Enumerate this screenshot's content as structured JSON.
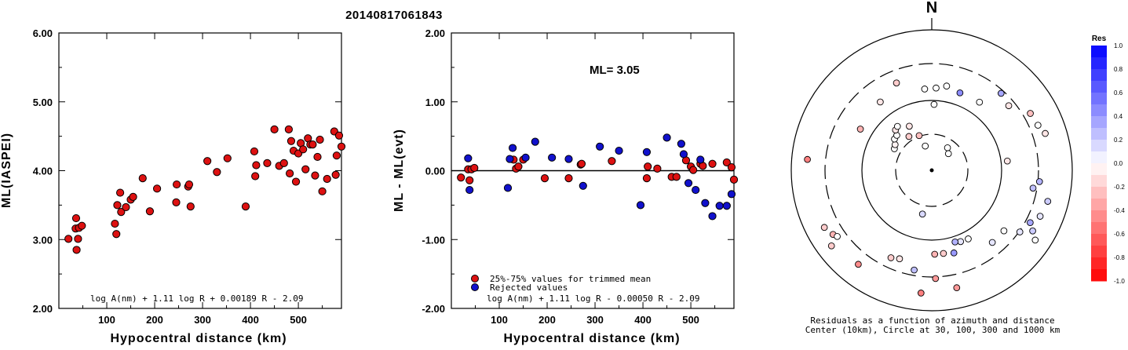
{
  "title": "20140817061843",
  "chart_data": [
    {
      "type": "scatter",
      "name": "left",
      "xlabel": "Hypocentral distance (km)",
      "ylabel": "ML(IASPEI)",
      "xlim": [
        0,
        590
      ],
      "ylim": [
        2.0,
        6.0
      ],
      "xticks": [
        "100",
        "200",
        "300",
        "400",
        "500"
      ],
      "yticks": [
        "2.00",
        "3.00",
        "4.00",
        "5.00",
        "6.00"
      ],
      "formula": "log A(nm) + 1.11 log R + 0.00189 R - 2.09",
      "series": [
        {
          "color": "#dd1111",
          "points": [
            [
              20,
              3.01
            ],
            [
              35,
              3.16
            ],
            [
              36,
              3.31
            ],
            [
              37,
              2.85
            ],
            [
              40,
              3.01
            ],
            [
              42,
              3.17
            ],
            [
              48,
              3.2
            ],
            [
              117,
              3.23
            ],
            [
              120,
              3.08
            ],
            [
              122,
              3.5
            ],
            [
              128,
              3.68
            ],
            [
              130,
              3.4
            ],
            [
              140,
              3.47
            ],
            [
              150,
              3.58
            ],
            [
              155,
              3.62
            ],
            [
              175,
              3.89
            ],
            [
              190,
              3.41
            ],
            [
              205,
              3.74
            ],
            [
              245,
              3.54
            ],
            [
              246,
              3.8
            ],
            [
              270,
              3.77
            ],
            [
              272,
              3.8
            ],
            [
              275,
              3.48
            ],
            [
              310,
              4.14
            ],
            [
              330,
              3.98
            ],
            [
              352,
              4.18
            ],
            [
              390,
              3.48
            ],
            [
              408,
              4.28
            ],
            [
              410,
              3.92
            ],
            [
              412,
              4.08
            ],
            [
              435,
              4.11
            ],
            [
              450,
              4.6
            ],
            [
              460,
              4.07
            ],
            [
              470,
              4.11
            ],
            [
              480,
              4.6
            ],
            [
              482,
              3.96
            ],
            [
              485,
              4.43
            ],
            [
              490,
              4.29
            ],
            [
              495,
              3.84
            ],
            [
              500,
              4.25
            ],
            [
              505,
              4.4
            ],
            [
              510,
              4.31
            ],
            [
              515,
              4.02
            ],
            [
              520,
              4.47
            ],
            [
              525,
              4.38
            ],
            [
              530,
              4.38
            ],
            [
              535,
              3.93
            ],
            [
              540,
              4.2
            ],
            [
              545,
              4.45
            ],
            [
              550,
              3.7
            ],
            [
              560,
              3.88
            ],
            [
              575,
              4.57
            ],
            [
              578,
              3.94
            ],
            [
              580,
              4.22
            ],
            [
              585,
              4.51
            ],
            [
              590,
              4.35
            ]
          ]
        }
      ]
    },
    {
      "type": "scatter",
      "name": "middle",
      "xlabel": "Hypocentral distance (km)",
      "ylabel": "ML - ML(evt)",
      "xlim": [
        0,
        590
      ],
      "ylim": [
        -2.0,
        2.0
      ],
      "xticks": [
        "100",
        "200",
        "300",
        "400",
        "500"
      ],
      "yticks": [
        "-2.00",
        "-1.00",
        "0.00",
        "1.00",
        "2.00"
      ],
      "ml_label": "ML= 3.05",
      "legend": [
        "25%-75% values for trimmed mean",
        "Rejected values"
      ],
      "formula": "log A(nm) + 1.11 log R - 0.00050 R - 2.09",
      "series": [
        {
          "color": "#dd1111",
          "points": [
            [
              20,
              -0.1
            ],
            [
              35,
              0.02
            ],
            [
              38,
              -0.14
            ],
            [
              42,
              0.02
            ],
            [
              48,
              0.04
            ],
            [
              130,
              0.16
            ],
            [
              135,
              0.03
            ],
            [
              140,
              0.06
            ],
            [
              150,
              0.16
            ],
            [
              195,
              -0.11
            ],
            [
              245,
              -0.11
            ],
            [
              270,
              0.09
            ],
            [
              272,
              0.1
            ],
            [
              335,
              0.14
            ],
            [
              408,
              -0.11
            ],
            [
              410,
              0.06
            ],
            [
              430,
              0.03
            ],
            [
              460,
              -0.09
            ],
            [
              470,
              -0.09
            ],
            [
              490,
              0.15
            ],
            [
              500,
              0.06
            ],
            [
              505,
              0.01
            ],
            [
              520,
              0.1
            ],
            [
              525,
              0.07
            ],
            [
              545,
              0.1
            ],
            [
              575,
              0.12
            ],
            [
              585,
              0.05
            ],
            [
              590,
              -0.13
            ]
          ]
        },
        {
          "color": "#1111cc",
          "points": [
            [
              35,
              0.18
            ],
            [
              38,
              -0.28
            ],
            [
              118,
              -0.25
            ],
            [
              122,
              0.17
            ],
            [
              128,
              0.33
            ],
            [
              155,
              0.19
            ],
            [
              175,
              0.42
            ],
            [
              210,
              0.19
            ],
            [
              245,
              0.17
            ],
            [
              275,
              -0.22
            ],
            [
              310,
              0.35
            ],
            [
              350,
              0.29
            ],
            [
              395,
              -0.5
            ],
            [
              408,
              0.27
            ],
            [
              450,
              0.48
            ],
            [
              480,
              0.39
            ],
            [
              485,
              0.24
            ],
            [
              495,
              -0.18
            ],
            [
              510,
              -0.28
            ],
            [
              520,
              0.16
            ],
            [
              530,
              -0.47
            ],
            [
              545,
              -0.66
            ],
            [
              560,
              -0.51
            ],
            [
              575,
              -0.51
            ],
            [
              585,
              -0.34
            ]
          ]
        }
      ]
    },
    {
      "type": "scatter",
      "name": "polar",
      "north_label": "N",
      "caption_line1": "Residuals as a function of azimuth and distance",
      "caption_line2": "Center (10km), Circle at 30, 100, 300 and 1000 km",
      "colorbar_title": "Res",
      "colorbar_ticks": [
        "1.0",
        "0.8",
        "0.6",
        "0.4",
        "0.2",
        "0.0",
        "-0.2",
        "-0.4",
        "-0.6",
        "-0.8",
        "-1.0"
      ],
      "stations": [
        {
          "az": 355,
          "r": 104,
          "res": 0.0
        },
        {
          "az": 3,
          "r": 105,
          "res": 0.0
        },
        {
          "az": 10,
          "r": 109,
          "res": 0.0
        },
        {
          "az": 20,
          "r": 105,
          "res": 0.45
        },
        {
          "az": 2,
          "r": 84,
          "res": 0.0
        },
        {
          "az": 338,
          "r": 120,
          "res": -0.2
        },
        {
          "az": 323,
          "r": 109,
          "res": -0.1
        },
        {
          "az": 300,
          "r": 105,
          "res": -0.3
        },
        {
          "az": 275,
          "r": 159,
          "res": -0.5
        },
        {
          "az": 35,
          "r": 106,
          "res": 0.0
        },
        {
          "az": 42,
          "r": 132,
          "res": 0.35
        },
        {
          "az": 50,
          "r": 128,
          "res": -0.1
        },
        {
          "az": 60,
          "r": 145,
          "res": -0.25
        },
        {
          "az": 67,
          "r": 147,
          "res": 0.0
        },
        {
          "az": 72,
          "r": 152,
          "res": -0.1
        },
        {
          "az": 300,
          "r": 55,
          "res": 0.0
        },
        {
          "az": 305,
          "r": 57,
          "res": -0.05
        },
        {
          "az": 310,
          "r": 62,
          "res": 0.0
        },
        {
          "az": 315,
          "r": 63,
          "res": 0.0
        },
        {
          "az": 318,
          "r": 69,
          "res": -0.1
        },
        {
          "az": 322,
          "r": 71,
          "res": 0.0
        },
        {
          "az": 333,
          "r": 63,
          "res": -0.1
        },
        {
          "az": 326,
          "r": 52,
          "res": -0.2
        },
        {
          "az": 340,
          "r": 47,
          "res": -0.25
        },
        {
          "az": 345,
          "r": 32,
          "res": 0.0
        },
        {
          "az": 35,
          "r": 35,
          "res": 0.0
        },
        {
          "az": 45,
          "r": 30,
          "res": 0.0
        },
        {
          "az": 83,
          "r": 97,
          "res": -0.1
        },
        {
          "az": 96,
          "r": 138,
          "res": 0.3
        },
        {
          "az": 100,
          "r": 131,
          "res": 0.25
        },
        {
          "az": 105,
          "r": 153,
          "res": 0.2
        },
        {
          "az": 113,
          "r": 150,
          "res": 0.1
        },
        {
          "az": 118,
          "r": 142,
          "res": 0.35
        },
        {
          "az": 121,
          "r": 150,
          "res": 0.2
        },
        {
          "az": 125,
          "r": 137,
          "res": 0.1
        },
        {
          "az": 124,
          "r": 159,
          "res": 0.0
        },
        {
          "az": 130,
          "r": 120,
          "res": 0.0
        },
        {
          "az": 140,
          "r": 120,
          "res": 0.1
        },
        {
          "az": 152,
          "r": 99,
          "res": 0.0
        },
        {
          "az": 158,
          "r": 98,
          "res": 0.1
        },
        {
          "az": 162,
          "r": 96,
          "res": 0.3
        },
        {
          "az": 165,
          "r": 109,
          "res": 0.4
        },
        {
          "az": 172,
          "r": 107,
          "res": -0.2
        },
        {
          "az": 178,
          "r": 107,
          "res": -0.3
        },
        {
          "az": 185,
          "r": 157,
          "res": -0.5
        },
        {
          "az": 168,
          "r": 153,
          "res": -0.4
        },
        {
          "az": 178,
          "r": 138,
          "res": -0.4
        },
        {
          "az": 190,
          "r": 129,
          "res": 0.25
        },
        {
          "az": 200,
          "r": 120,
          "res": -0.1
        },
        {
          "az": 205,
          "r": 123,
          "res": -0.2
        },
        {
          "az": 218,
          "r": 152,
          "res": -0.45
        },
        {
          "az": 233,
          "r": 160,
          "res": -0.2
        },
        {
          "az": 237,
          "r": 150,
          "res": -0.3
        },
        {
          "az": 242,
          "r": 155,
          "res": -0.2
        },
        {
          "az": 235,
          "r": 147,
          "res": 0.0
        },
        {
          "az": 192,
          "r": 57,
          "res": 0.15
        }
      ]
    }
  ]
}
